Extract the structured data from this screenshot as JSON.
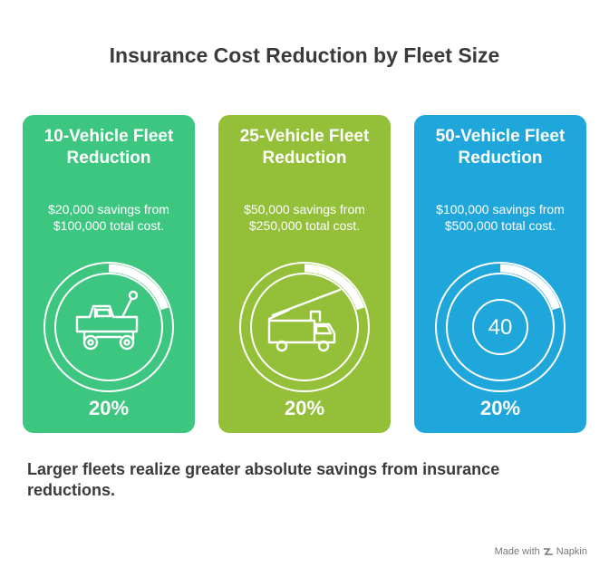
{
  "title": "Insurance Cost Reduction by Fleet Size",
  "cards": [
    {
      "title": "10-Vehicle Fleet Reduction",
      "description": "$20,000 savings from $100,000 total cost.",
      "percent_label": "20%",
      "reduction_fraction": 0.2,
      "color": "#3cc67f",
      "icon": "toy-truck-icon"
    },
    {
      "title": "25-Vehicle Fleet Reduction",
      "description": "$50,000 savings from $250,000 total cost.",
      "percent_label": "20%",
      "reduction_fraction": 0.2,
      "color": "#93bf39",
      "icon": "crane-truck-icon"
    },
    {
      "title": "50-Vehicle Fleet Reduction",
      "description": "$100,000 savings from $500,000 total cost.",
      "percent_label": "20%",
      "reduction_fraction": 0.2,
      "color": "#1fa7dc",
      "icon": "speed-limit-40-icon",
      "icon_text": "40"
    }
  ],
  "footer_text": "Larger fleets realize greater absolute savings from insurance reductions.",
  "brand": {
    "made_with": "Made with",
    "name": "Napkin"
  }
}
